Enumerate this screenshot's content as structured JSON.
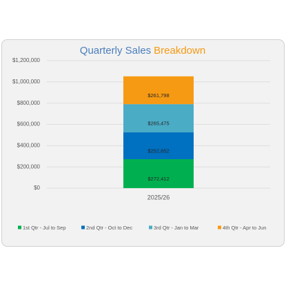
{
  "chart_data": {
    "type": "stacked_bar",
    "title": [
      "Quarterly Sales",
      "Breakdown"
    ],
    "title_colors": [
      "#4a7ebb",
      "#f59a13"
    ],
    "categories": [
      "2025/26"
    ],
    "series": [
      {
        "name": "1st Qtr - Jul to Sep",
        "color": "#00b050",
        "values": [
          272412
        ],
        "value_labels": [
          "$272,412"
        ]
      },
      {
        "name": "2nd Qtr - Oct to Dec",
        "color": "#0070c0",
        "values": [
          252652
        ],
        "value_labels": [
          "$252,652"
        ]
      },
      {
        "name": "3rd Qtr - Jan to Mar",
        "color": "#4bacc6",
        "values": [
          265475
        ],
        "value_labels": [
          "$265,475"
        ]
      },
      {
        "name": "4th Qtr - Apr to Jun",
        "color": "#f79a13",
        "values": [
          261798
        ],
        "value_labels": [
          "$261,798"
        ]
      }
    ],
    "ylim": [
      0,
      1200000
    ],
    "yticks": [
      {
        "value": 0,
        "label": "$0"
      },
      {
        "value": 200000,
        "label": "$200,000"
      },
      {
        "value": 400000,
        "label": "$400,000"
      },
      {
        "value": 600000,
        "label": "$600,000"
      },
      {
        "value": 800000,
        "label": "$800,000"
      },
      {
        "value": 1000000,
        "label": "$1,000,000"
      },
      {
        "value": 1200000,
        "label": "$1,200,000"
      }
    ],
    "grid": true,
    "legend": "bottom"
  }
}
